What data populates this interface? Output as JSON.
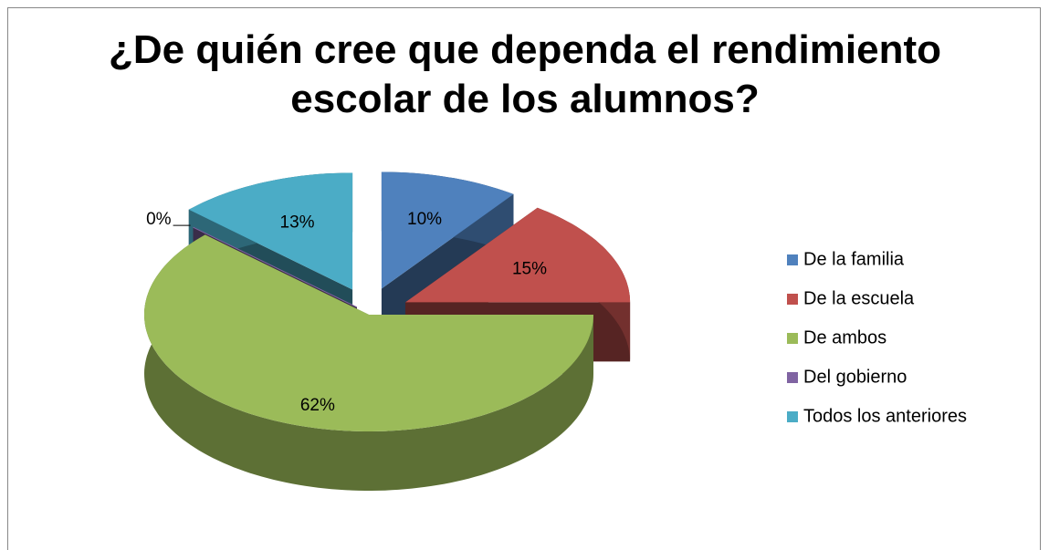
{
  "chart_data": {
    "type": "pie3d",
    "title": "¿De quién cree que dependa el rendimiento escolar de los alumnos?",
    "categories": [
      "De la familia",
      "De la escuela",
      "De ambos",
      "Del gobierno",
      "Todos los anteriores"
    ],
    "values": [
      10,
      15,
      62,
      0,
      13
    ],
    "value_labels": [
      "10%",
      "15%",
      "62%",
      "0%",
      "13%"
    ],
    "colors": [
      "#4f81bd",
      "#c0504d",
      "#9bbb59",
      "#8064a2",
      "#4bacc6"
    ],
    "legend": "right"
  }
}
